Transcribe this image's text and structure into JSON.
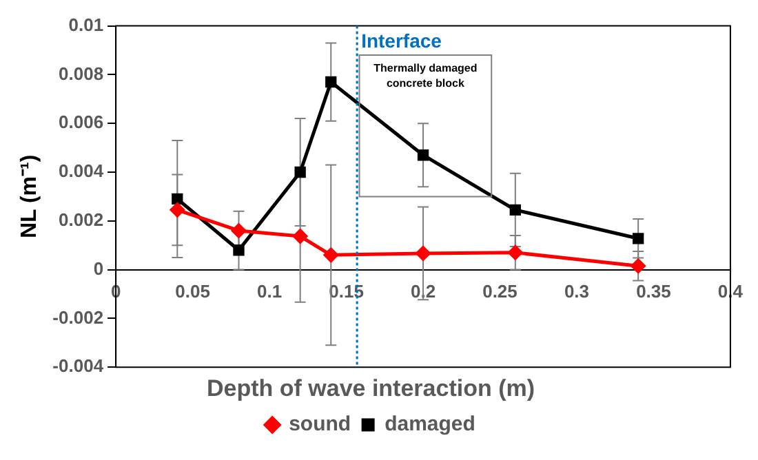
{
  "chart_data": {
    "type": "line",
    "xlabel": "Depth of wave interaction (m)",
    "ylabel": "NL (m⁻¹)",
    "x": [
      0.04,
      0.08,
      0.12,
      0.14,
      0.2,
      0.26,
      0.34
    ],
    "series": [
      {
        "name": "sound",
        "color": "#ff0000",
        "marker": "diamond",
        "values": [
          0.00245,
          0.0016,
          0.00137,
          0.0006,
          0.00067,
          0.0007,
          0.00015
        ],
        "errors": [
          0.00145,
          0.0008,
          0.0027,
          0.0037,
          0.0019,
          0.0007,
          0.0006
        ]
      },
      {
        "name": "damaged",
        "color": "#000000",
        "marker": "square",
        "values": [
          0.0029,
          0.0008,
          0.004,
          0.0077,
          0.0047,
          0.00245,
          0.00128
        ],
        "errors": [
          0.0024,
          0.0008,
          0.0022,
          0.0016,
          0.0013,
          0.0015,
          0.0008
        ]
      }
    ],
    "xlim": [
      0,
      0.4
    ],
    "xticks": [
      0,
      0.05,
      0.1,
      0.15,
      0.2,
      0.25,
      0.3,
      0.35,
      0.4
    ],
    "ylim": [
      -0.004,
      0.01
    ],
    "yticks": [
      -0.004,
      -0.002,
      0,
      0.002,
      0.004,
      0.006,
      0.008,
      0.01
    ],
    "ref_lines": [
      {
        "axis": "x",
        "value": 0.157,
        "label": "Interface",
        "color": "#0070c0",
        "line_style": "dotted"
      }
    ],
    "annotations": [
      "Thermally damaged concrete block"
    ],
    "grid": false,
    "legend": "bottom"
  }
}
